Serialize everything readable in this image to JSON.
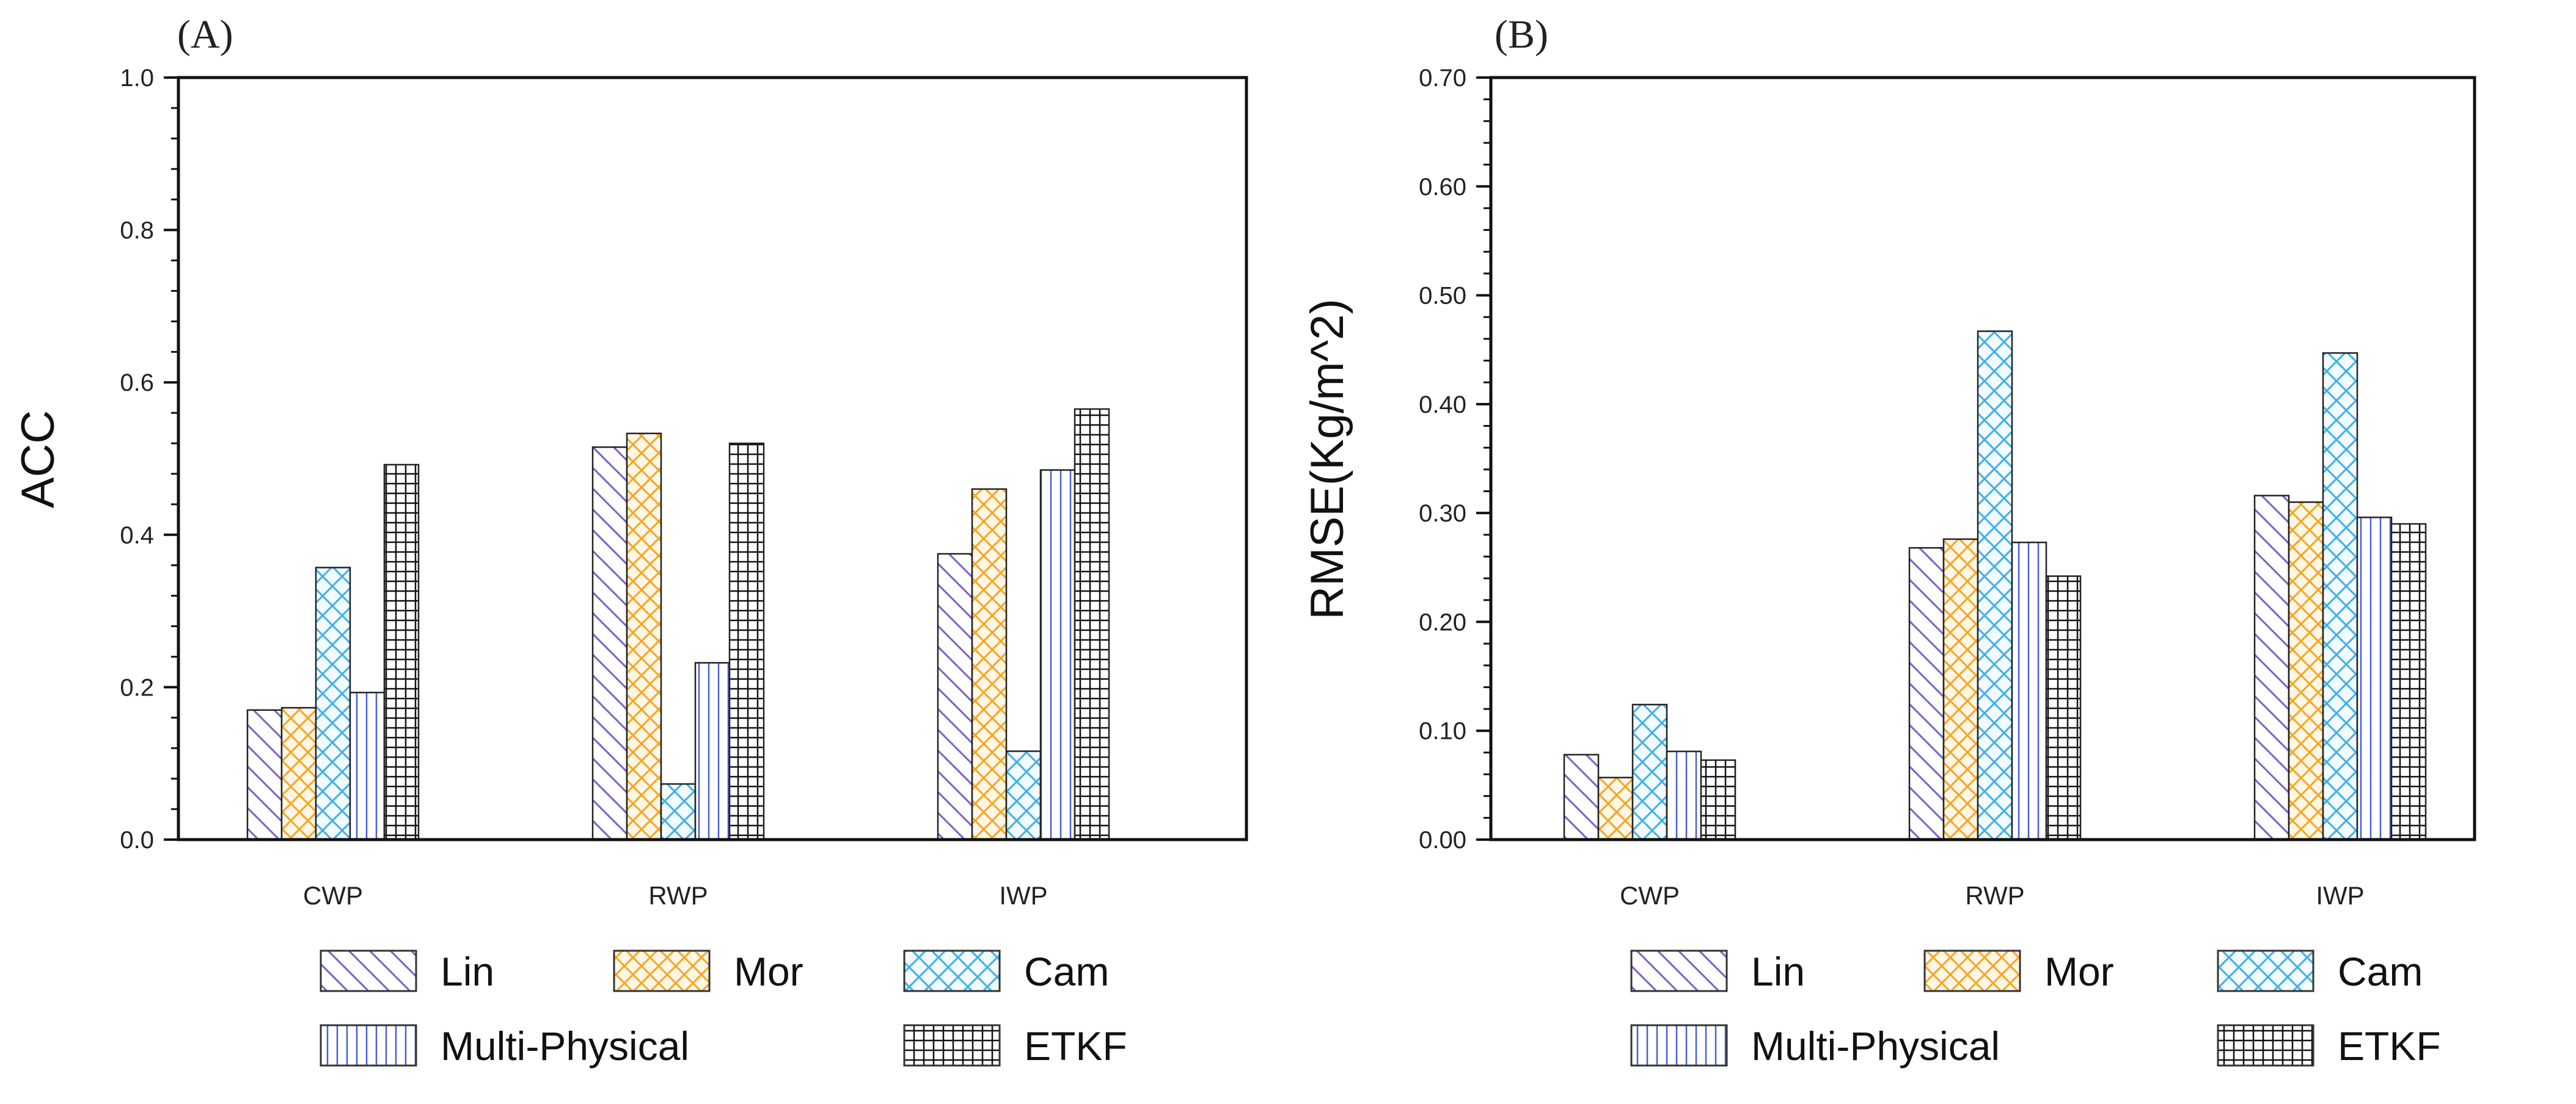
{
  "figure": {
    "series_styles": [
      {
        "name": "Lin",
        "color": "#7b61c9",
        "pattern": "diag-back"
      },
      {
        "name": "Mor",
        "color": "#f5a623",
        "pattern": "crosshatch-diag"
      },
      {
        "name": "Cam",
        "color": "#3fb0e8",
        "pattern": "crosshatch-diag"
      },
      {
        "name": "Multi-Physical",
        "color": "#4a5fd0",
        "pattern": "vertical"
      },
      {
        "name": "ETKF",
        "color": "#111111",
        "pattern": "grid"
      }
    ]
  },
  "chart_data": [
    {
      "type": "bar",
      "panel": "(A)",
      "title": "",
      "xlabel": "",
      "ylabel": "ACC",
      "ylim": [
        0,
        1.0
      ],
      "yticks": [
        0.0,
        0.2,
        0.4,
        0.6,
        0.8,
        1.0
      ],
      "ytick_labels": [
        "0.0",
        "0.2",
        "0.4",
        "0.6",
        "0.8",
        "1.0"
      ],
      "categories": [
        "CWP",
        "RWP",
        "IWP"
      ],
      "series": [
        {
          "name": "Lin",
          "values": [
            0.17,
            0.515,
            0.375
          ]
        },
        {
          "name": "Mor",
          "values": [
            0.173,
            0.533,
            0.46
          ]
        },
        {
          "name": "Cam",
          "values": [
            0.357,
            0.073,
            0.116
          ]
        },
        {
          "name": "Multi-Physical",
          "values": [
            0.193,
            0.232,
            0.485
          ]
        },
        {
          "name": "ETKF",
          "values": [
            0.492,
            0.52,
            0.565
          ]
        }
      ],
      "legend": {
        "placement": "bottom",
        "rows": [
          [
            "Lin",
            "Mor",
            "Cam"
          ],
          [
            "Multi-Physical",
            "ETKF"
          ]
        ]
      }
    },
    {
      "type": "bar",
      "panel": "(B)",
      "title": "",
      "xlabel": "",
      "ylabel": "RMSE(Kg/m^2)",
      "ylim": [
        0,
        0.7
      ],
      "yticks": [
        0.0,
        0.1,
        0.2,
        0.3,
        0.4,
        0.5,
        0.6,
        0.7
      ],
      "ytick_labels": [
        "0.00",
        "0.10",
        "0.20",
        "0.30",
        "0.40",
        "0.50",
        "0.60",
        "0.70"
      ],
      "categories": [
        "CWP",
        "RWP",
        "IWP"
      ],
      "series": [
        {
          "name": "Lin",
          "values": [
            0.078,
            0.268,
            0.316
          ]
        },
        {
          "name": "Mor",
          "values": [
            0.057,
            0.276,
            0.31
          ]
        },
        {
          "name": "Cam",
          "values": [
            0.124,
            0.467,
            0.447
          ]
        },
        {
          "name": "Multi-Physical",
          "values": [
            0.081,
            0.273,
            0.296
          ]
        },
        {
          "name": "ETKF",
          "values": [
            0.073,
            0.242,
            0.29
          ]
        }
      ],
      "legend": {
        "placement": "bottom",
        "rows": [
          [
            "Lin",
            "Mor",
            "Cam"
          ],
          [
            "Multi-Physical",
            "ETKF"
          ]
        ]
      }
    }
  ]
}
